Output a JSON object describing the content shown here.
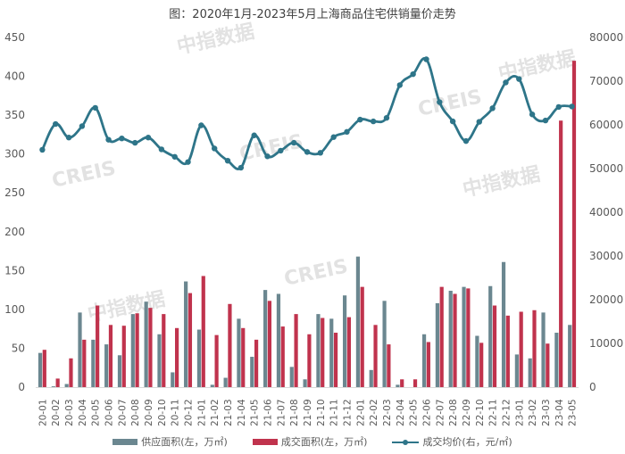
{
  "chart_data": {
    "type": "bar+line",
    "title": "图：2020年1月-2023年5月上海商品住宅供销量价走势",
    "categories": [
      "20-01",
      "20-02",
      "20-03",
      "20-04",
      "20-05",
      "20-06",
      "20-07",
      "20-08",
      "20-09",
      "20-10",
      "20-11",
      "20-12",
      "21-01",
      "21-02",
      "21-03",
      "21-04",
      "21-05",
      "21-06",
      "21-07",
      "21-08",
      "21-09",
      "21-10",
      "21-11",
      "21-12",
      "22-01",
      "22-02",
      "22-03",
      "22-04",
      "22-05",
      "22-06",
      "22-07",
      "22-08",
      "22-09",
      "22-10",
      "22-11",
      "22-12",
      "23-01",
      "23-02",
      "23-03",
      "23-04",
      "23-05"
    ],
    "series": [
      {
        "name": "供应面积(左，万㎡)",
        "type": "bar",
        "axis": "left",
        "color": "#6b8790",
        "values": [
          44,
          1,
          4,
          96,
          61,
          55,
          41,
          94,
          110,
          68,
          19,
          136,
          74,
          3,
          12,
          88,
          39,
          125,
          120,
          26,
          10,
          94,
          88,
          118,
          168,
          22,
          111,
          3,
          0,
          68,
          108,
          124,
          129,
          66,
          130,
          161,
          42,
          37,
          96,
          70,
          80
        ]
      },
      {
        "name": "成交面积(左，万㎡)",
        "type": "bar",
        "axis": "left",
        "color": "#c0334d",
        "values": [
          48,
          11,
          37,
          61,
          105,
          80,
          79,
          95,
          102,
          94,
          76,
          121,
          143,
          67,
          107,
          76,
          61,
          111,
          78,
          94,
          68,
          89,
          70,
          90,
          129,
          80,
          55,
          10,
          10,
          58,
          129,
          120,
          127,
          57,
          105,
          92,
          97,
          99,
          56,
          343,
          420
        ]
      },
      {
        "name": "成交均价(右，元/㎡)",
        "type": "line",
        "axis": "right",
        "color": "#2e7589",
        "values": [
          54300,
          60200,
          57100,
          59700,
          63900,
          56600,
          56900,
          55900,
          57100,
          54400,
          52700,
          51500,
          59900,
          54600,
          51800,
          50200,
          57600,
          52800,
          54100,
          55900,
          53800,
          53600,
          57200,
          58400,
          61200,
          60800,
          61600,
          69100,
          71600,
          75000,
          65200,
          60800,
          56300,
          60700,
          63800,
          69700,
          70500,
          62400,
          61000,
          64100,
          64200
        ]
      }
    ],
    "left_axis": {
      "ylim": [
        0,
        450
      ],
      "ticks": [
        0,
        50,
        100,
        150,
        200,
        250,
        300,
        350,
        400,
        450
      ]
    },
    "right_axis": {
      "ylim": [
        0,
        80000
      ],
      "ticks": [
        0,
        10000,
        20000,
        30000,
        40000,
        50000,
        60000,
        70000,
        80000
      ]
    },
    "grid": false,
    "legend_position": "bottom",
    "watermarks": [
      "中指数据",
      "CREIS"
    ]
  },
  "title": "图：2020年1月-2023年5月上海商品住宅供销量价走势",
  "legend": [
    {
      "label": "供应面积(左，万㎡)"
    },
    {
      "label": "成交面积(左，万㎡)"
    },
    {
      "label": "成交均价(右，元/㎡)"
    }
  ]
}
